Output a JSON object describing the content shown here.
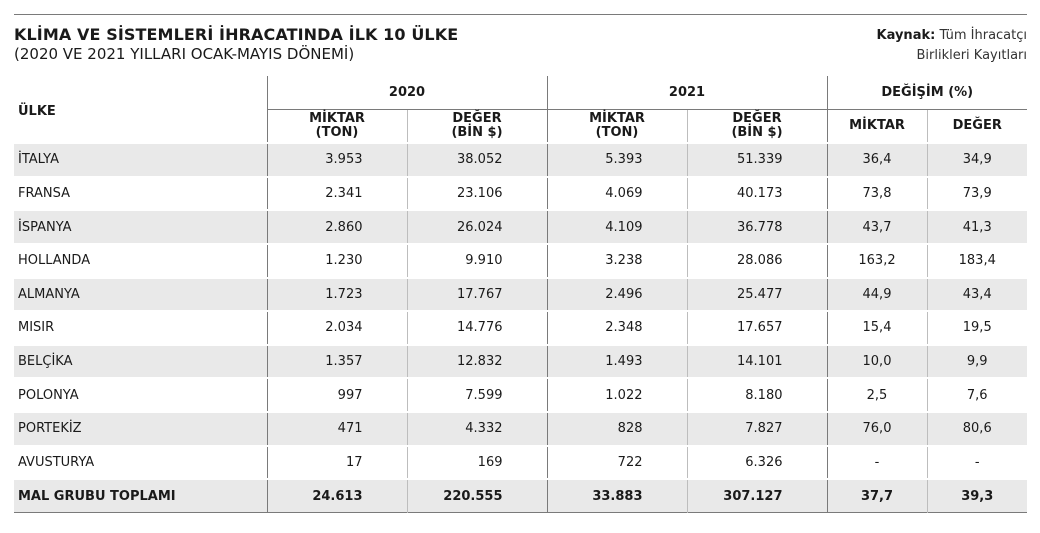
{
  "header": {
    "title": "KLİMA VE SİSTEMLERİ İHRACATINDA İLK 10 ÜLKE",
    "subtitle": "(2020 VE 2021 YILLARI OCAK-MAYIS DÖNEMİ)",
    "source_label": "Kaynak:",
    "source_line1": "Tüm İhracatçı",
    "source_line2": "Birlikleri Kayıtları"
  },
  "table": {
    "country_header": "ÜLKE",
    "groups": [
      "2020",
      "2021",
      "DEĞİŞİM (%)"
    ],
    "sub_headers": {
      "miktar_l1": "MİKTAR",
      "miktar_l2": "(TON)",
      "deger_l1": "DEĞER",
      "deger_l2": "(BİN $)",
      "change_miktar": "MİKTAR",
      "change_deger": "DEĞER"
    },
    "rows": [
      [
        "İTALYA",
        "3.953",
        "38.052",
        "5.393",
        "51.339",
        "36,4",
        "34,9"
      ],
      [
        "FRANSA",
        "2.341",
        "23.106",
        "4.069",
        "40.173",
        "73,8",
        "73,9"
      ],
      [
        "İSPANYA",
        "2.860",
        "26.024",
        "4.109",
        "36.778",
        "43,7",
        "41,3"
      ],
      [
        "HOLLANDA",
        "1.230",
        "9.910",
        "3.238",
        "28.086",
        "163,2",
        "183,4"
      ],
      [
        "ALMANYA",
        "1.723",
        "17.767",
        "2.496",
        "25.477",
        "44,9",
        "43,4"
      ],
      [
        "MISIR",
        "2.034",
        "14.776",
        "2.348",
        "17.657",
        "15,4",
        "19,5"
      ],
      [
        "BELÇİKA",
        "1.357",
        "12.832",
        "1.493",
        "14.101",
        "10,0",
        "9,9"
      ],
      [
        "POLONYA",
        "997",
        "7.599",
        "1.022",
        "8.180",
        "2,5",
        "7,6"
      ],
      [
        "PORTEKİZ",
        "471",
        "4.332",
        "828",
        "7.827",
        "76,0",
        "80,6"
      ],
      [
        "AVUSTURYA",
        "17",
        "169",
        "722",
        "6.326",
        "-",
        "-"
      ]
    ],
    "total": [
      "MAL GRUBU TOPLAMI",
      "24.613",
      "220.555",
      "33.883",
      "307.127",
      "37,7",
      "39,3"
    ]
  }
}
